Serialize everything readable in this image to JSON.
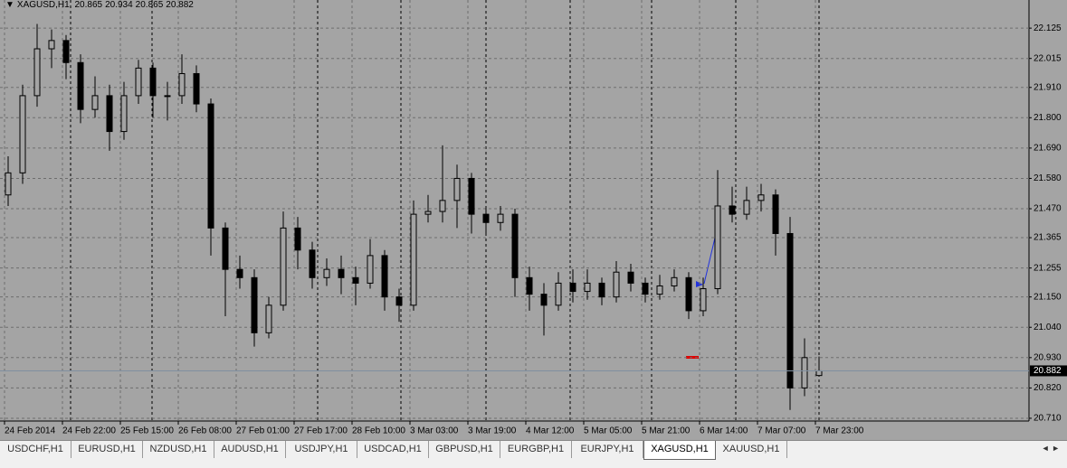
{
  "chart_data": {
    "type": "candlestick",
    "title": "XAGUSD,H1",
    "open": [
      21.52,
      21.6,
      21.88,
      22.05,
      22.08,
      22.0,
      21.83,
      21.88,
      21.75,
      21.88,
      21.98,
      21.88,
      21.88,
      21.96,
      21.85,
      21.4,
      21.25,
      21.22,
      21.02,
      21.12,
      21.4,
      21.32,
      21.22,
      21.25,
      21.22,
      21.2,
      21.3,
      21.15,
      21.12,
      21.45,
      21.46,
      21.5,
      21.58,
      21.45,
      21.42,
      21.45,
      21.22,
      21.16,
      21.12,
      21.2,
      21.17,
      21.2,
      21.15,
      21.24,
      21.2,
      21.16,
      21.19,
      21.22,
      21.1,
      21.18,
      21.48,
      21.45,
      21.5,
      21.52,
      21.38,
      20.82,
      20.865
    ],
    "high": [
      21.66,
      21.92,
      22.14,
      22.12,
      22.1,
      22.03,
      21.95,
      21.92,
      21.93,
      22.01,
      22.0,
      21.93,
      22.03,
      21.99,
      21.87,
      21.42,
      21.3,
      21.25,
      21.15,
      21.46,
      21.44,
      21.35,
      21.29,
      21.3,
      21.26,
      21.36,
      21.32,
      21.18,
      21.5,
      21.52,
      21.7,
      21.63,
      21.6,
      21.48,
      21.48,
      21.47,
      21.26,
      21.2,
      21.24,
      21.25,
      21.25,
      21.22,
      21.28,
      21.27,
      21.22,
      21.23,
      21.25,
      21.24,
      21.22,
      21.61,
      21.55,
      21.55,
      21.56,
      21.54,
      21.44,
      21.0,
      20.934
    ],
    "low": [
      21.48,
      21.56,
      21.84,
      21.98,
      21.94,
      21.78,
      21.8,
      21.68,
      21.72,
      21.85,
      21.8,
      21.79,
      21.85,
      21.82,
      21.3,
      21.08,
      21.18,
      20.97,
      21.0,
      21.1,
      21.25,
      21.18,
      21.19,
      21.16,
      21.12,
      21.18,
      21.1,
      21.06,
      21.1,
      21.42,
      21.42,
      21.4,
      21.38,
      21.38,
      21.39,
      21.15,
      21.1,
      21.01,
      21.1,
      21.13,
      21.14,
      21.12,
      21.13,
      21.17,
      21.13,
      21.14,
      21.17,
      21.07,
      21.08,
      21.16,
      21.42,
      21.43,
      21.46,
      21.3,
      20.74,
      20.79,
      20.865
    ],
    "close": [
      21.6,
      21.88,
      22.05,
      22.08,
      22.0,
      21.83,
      21.88,
      21.75,
      21.88,
      21.98,
      21.88,
      21.88,
      21.96,
      21.85,
      21.4,
      21.25,
      21.22,
      21.02,
      21.12,
      21.4,
      21.32,
      21.22,
      21.25,
      21.22,
      21.2,
      21.3,
      21.15,
      21.12,
      21.45,
      21.46,
      21.5,
      21.58,
      21.45,
      21.42,
      21.45,
      21.22,
      21.16,
      21.12,
      21.2,
      21.17,
      21.2,
      21.15,
      21.24,
      21.2,
      21.16,
      21.19,
      21.22,
      21.1,
      21.18,
      21.48,
      21.45,
      21.5,
      21.52,
      21.38,
      20.82,
      20.93,
      20.882
    ],
    "bull_color": "#a4a4a4",
    "bear_color": "#000000",
    "xlim": [
      -0.5625,
      70.5
    ],
    "ylim": [
      20.7,
      22.227
    ],
    "yticks": [
      22.125,
      22.015,
      {
        "value": 21.91,
        "label": "21.910"
      },
      {
        "value": 21.8,
        "label": "21.800"
      },
      {
        "value": 21.69,
        "label": "21.690"
      },
      {
        "value": 21.58,
        "label": "21.580"
      },
      {
        "value": 21.47,
        "label": "21.470"
      },
      21.365,
      21.255,
      {
        "value": 21.15,
        "label": "21.150"
      },
      {
        "value": 21.04,
        "label": "21.040"
      },
      {
        "value": 20.93,
        "label": "20.930"
      },
      {
        "value": 20.82,
        "label": "20.820"
      },
      {
        "value": 20.71,
        "label": "20.710"
      }
    ],
    "xticks": [
      {
        "value": 0,
        "label": "24 Feb 2014"
      },
      {
        "value": 4,
        "label": "24 Feb 22:00"
      },
      {
        "value": 8,
        "label": "25 Feb 15:00"
      },
      {
        "value": 12,
        "label": "26 Feb 08:00"
      },
      {
        "value": 16,
        "label": "27 Feb 01:00"
      },
      {
        "value": 20,
        "label": "27 Feb 17:00"
      },
      {
        "value": 24,
        "label": "28 Feb 10:00"
      },
      {
        "value": 28,
        "label": "3 Mar 03:00"
      },
      {
        "value": 32,
        "label": "3 Mar 19:00"
      },
      {
        "value": 36,
        "label": "4 Mar 12:00"
      },
      {
        "value": 40,
        "label": "5 Mar 05:00"
      },
      {
        "value": 44,
        "label": "5 Mar 21:00"
      },
      {
        "value": 48,
        "label": "6 Mar 14:00"
      },
      {
        "value": 52,
        "label": "7 Mar 07:00"
      },
      {
        "value": 56,
        "label": "7 Mar 23:00"
      }
    ],
    "grid": true
  },
  "tabs": [
    "USDCHF,H1",
    "EURUSD,H1",
    "NZDUSD,H1",
    "AUDUSD,H1",
    "USDJPY,H1",
    "USDCAD,H1",
    "GBPUSD,H1",
    "EURGBP,H1",
    "EURJPY,H1",
    "XAGUSD,H1",
    "XAUUSD,H1"
  ],
  "active_tab_index": 9
}
